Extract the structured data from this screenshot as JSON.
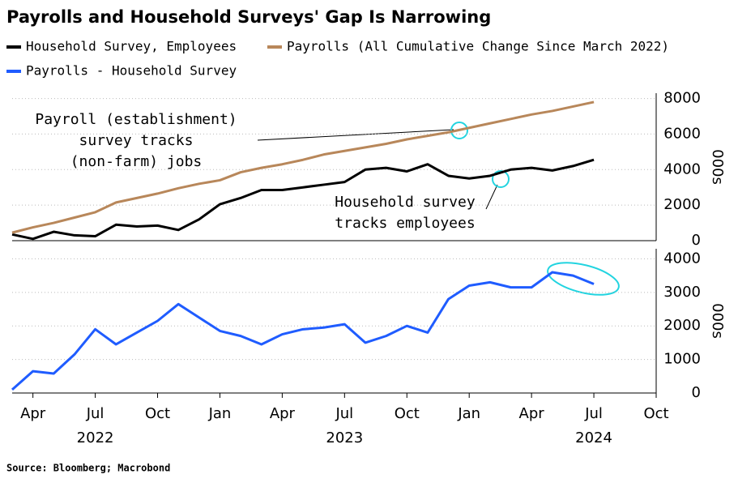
{
  "chart_data": [
    {
      "type": "line",
      "title": "Payrolls and Household Surveys' Gap Is Narrowing",
      "source": "Source: Bloomberg; Macrobond",
      "ylabel": "000s",
      "x": [
        "2022-03",
        "2022-04",
        "2022-05",
        "2022-06",
        "2022-07",
        "2022-08",
        "2022-09",
        "2022-10",
        "2022-11",
        "2022-12",
        "2023-01",
        "2023-02",
        "2023-03",
        "2023-04",
        "2023-05",
        "2023-06",
        "2023-07",
        "2023-08",
        "2023-09",
        "2023-10",
        "2023-11",
        "2023-12",
        "2024-01",
        "2024-02",
        "2024-03",
        "2024-04",
        "2024-05",
        "2024-06",
        "2024-07"
      ],
      "xlim": [
        "2022-03",
        "2024-10"
      ],
      "ylim": [
        0,
        8300
      ],
      "yticks": [
        0,
        2000,
        4000,
        6000,
        8000
      ],
      "grid": true,
      "series": [
        {
          "name": "Household Survey, Employees",
          "color": "#000000",
          "values": [
            350,
            100,
            500,
            300,
            250,
            900,
            800,
            850,
            600,
            1200,
            2050,
            2400,
            2850,
            2850,
            3000,
            3150,
            3300,
            4000,
            4100,
            3900,
            4300,
            3650,
            3500,
            3650,
            4000,
            4100,
            3950,
            4200,
            4550
          ]
        },
        {
          "name": "Payrolls (All Cumulative Change Since March 2022)",
          "color": "#b8875a",
          "values": [
            450,
            750,
            1000,
            1300,
            1600,
            2150,
            2400,
            2650,
            2950,
            3200,
            3400,
            3850,
            4100,
            4300,
            4550,
            4850,
            5050,
            5250,
            5450,
            5700,
            5900,
            6100,
            6350,
            6600,
            6850,
            7100,
            7300,
            7550,
            7800
          ]
        }
      ],
      "annotations": [
        {
          "lines": [
            "Payroll (establishment)",
            "survey tracks",
            "(non-farm) jobs"
          ]
        },
        {
          "lines": [
            "Household survey",
            "tracks employees"
          ]
        }
      ]
    },
    {
      "type": "line",
      "ylabel": "000s",
      "x": [
        "2022-03",
        "2022-04",
        "2022-05",
        "2022-06",
        "2022-07",
        "2022-08",
        "2022-09",
        "2022-10",
        "2022-11",
        "2022-12",
        "2023-01",
        "2023-02",
        "2023-03",
        "2023-04",
        "2023-05",
        "2023-06",
        "2023-07",
        "2023-08",
        "2023-09",
        "2023-10",
        "2023-11",
        "2023-12",
        "2024-01",
        "2024-02",
        "2024-03",
        "2024-04",
        "2024-05",
        "2024-06",
        "2024-07"
      ],
      "xlim": [
        "2022-03",
        "2024-10"
      ],
      "ylim": [
        0,
        4300
      ],
      "yticks": [
        0,
        1000,
        2000,
        3000,
        4000
      ],
      "grid": true,
      "xticks": [
        {
          "value": "2022-04",
          "label": "Apr"
        },
        {
          "value": "2022-07",
          "label": "Jul"
        },
        {
          "value": "2022-10",
          "label": "Oct"
        },
        {
          "value": "2023-01",
          "label": "Jan"
        },
        {
          "value": "2023-04",
          "label": "Apr"
        },
        {
          "value": "2023-07",
          "label": "Jul"
        },
        {
          "value": "2023-10",
          "label": "Oct"
        },
        {
          "value": "2024-01",
          "label": "Jan"
        },
        {
          "value": "2024-04",
          "label": "Apr"
        },
        {
          "value": "2024-07",
          "label": "Jul"
        },
        {
          "value": "2024-10",
          "label": "Oct"
        }
      ],
      "year_labels": [
        {
          "value": "2022-07",
          "label": "2022"
        },
        {
          "value": "2023-07",
          "label": "2023"
        },
        {
          "value": "2024-07",
          "label": "2024"
        }
      ],
      "series": [
        {
          "name": "Payrolls - Household Survey",
          "color": "#1f5cff",
          "values": [
            100,
            650,
            580,
            1150,
            1900,
            1450,
            1800,
            2150,
            2650,
            2250,
            1850,
            1700,
            1450,
            1750,
            1900,
            1950,
            2050,
            1500,
            1700,
            2000,
            1800,
            2800,
            3200,
            3300,
            3150,
            3150,
            3600,
            3500,
            3250
          ]
        }
      ]
    }
  ]
}
